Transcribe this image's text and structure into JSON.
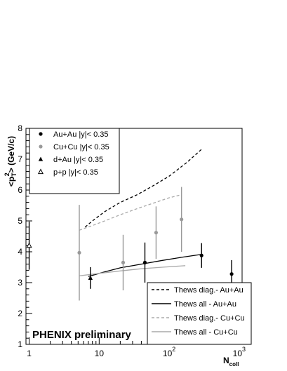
{
  "chart_data": {
    "type": "scatter",
    "title": "",
    "ylabel_main": "<p",
    "ylabel_sup": "2",
    "ylabel_sub": "T",
    "ylabel_rest": "> (GeV/c)",
    "xlabel_main": "N",
    "xlabel_sub": "coll",
    "xscale": "log",
    "xlim": [
      0.9,
      1100
    ],
    "ylim": [
      1,
      8
    ],
    "x_ticks": [
      {
        "value": 1,
        "label": "1"
      },
      {
        "value": 10,
        "label": "10"
      },
      {
        "value": 100,
        "label": "10",
        "sup": "2"
      },
      {
        "value": 1000,
        "label": "10",
        "sup": "3"
      }
    ],
    "y_ticks": [
      1,
      2,
      3,
      4,
      5,
      6,
      7,
      8
    ],
    "grid": false,
    "annotation": "PHENIX preliminary",
    "legends": [
      {
        "placement": "top-left",
        "entries": [
          {
            "label": "Au+Au |y|< 0.35",
            "marker": "circle",
            "color": "#000000"
          },
          {
            "label": "Cu+Cu |y|< 0.35",
            "marker": "circle",
            "color": "#999999"
          },
          {
            "label": "d+Au |y|< 0.35",
            "marker": "triangle",
            "color": "#000000"
          },
          {
            "label": "p+p |y|< 0.35",
            "marker": "triangle-open",
            "color": "#000000"
          }
        ]
      },
      {
        "placement": "bottom-right",
        "entries": [
          {
            "label": "Thews diag.- Au+Au",
            "style": "dashed",
            "color": "#000000"
          },
          {
            "label": "Thews all - Au+Au",
            "style": "solid",
            "color": "#000000"
          },
          {
            "label": "Thews diag.- Cu+Cu",
            "style": "dashed",
            "color": "#aaaaaa"
          },
          {
            "label": "Thews all - Cu+Cu",
            "style": "solid",
            "color": "#aaaaaa"
          }
        ]
      }
    ],
    "series": [
      {
        "name": "Au+Au |y|< 0.35",
        "marker": "circle",
        "color": "#000000",
        "points": [
          {
            "x": 45,
            "y": 3.65,
            "err": 0.65
          },
          {
            "x": 290,
            "y": 3.88,
            "err": 0.4
          },
          {
            "x": 780,
            "y": 3.28,
            "err": 0.45
          }
        ]
      },
      {
        "name": "Cu+Cu |y|< 0.35",
        "marker": "circle",
        "color": "#999999",
        "points": [
          {
            "x": 5.2,
            "y": 3.97,
            "err": 1.55
          },
          {
            "x": 22,
            "y": 3.65,
            "err": 0.9
          },
          {
            "x": 65,
            "y": 4.62,
            "err": 0.85
          },
          {
            "x": 150,
            "y": 5.05,
            "err": 1.05
          }
        ]
      },
      {
        "name": "d+Au |y|< 0.35",
        "marker": "triangle",
        "color": "#000000",
        "points": [
          {
            "x": 7.5,
            "y": 3.15,
            "err": 0.35
          }
        ]
      },
      {
        "name": "p+p |y|< 0.35",
        "marker": "triangle-open",
        "color": "#000000",
        "points": [
          {
            "x": 1,
            "y": 4.2,
            "err": 0.78
          }
        ]
      }
    ],
    "curves": [
      {
        "name": "Thews diag.- Au+Au",
        "style": "dashed",
        "color": "#000000",
        "x": [
          6.3,
          8,
          12,
          20,
          35,
          60,
          100,
          180,
          300
        ],
        "y": [
          4.8,
          5.0,
          5.3,
          5.6,
          5.85,
          6.15,
          6.45,
          6.9,
          7.35
        ]
      },
      {
        "name": "Thews all - Au+Au",
        "style": "solid",
        "color": "#000000",
        "x": [
          7,
          12,
          20,
          40,
          80,
          150,
          300
        ],
        "y": [
          3.2,
          3.35,
          3.48,
          3.6,
          3.72,
          3.82,
          3.92
        ]
      },
      {
        "name": "Thews diag.- Cu+Cu",
        "style": "dashed",
        "color": "#aaaaaa",
        "x": [
          5.2,
          8,
          12,
          20,
          35,
          60,
          100,
          150
        ],
        "y": [
          4.7,
          4.85,
          5.0,
          5.2,
          5.4,
          5.58,
          5.75,
          5.85
        ]
      },
      {
        "name": "Thews all - Cu+Cu",
        "style": "solid",
        "color": "#aaaaaa",
        "x": [
          5.2,
          10,
          20,
          40,
          80,
          170
        ],
        "y": [
          3.22,
          3.3,
          3.38,
          3.45,
          3.5,
          3.55
        ]
      }
    ]
  }
}
